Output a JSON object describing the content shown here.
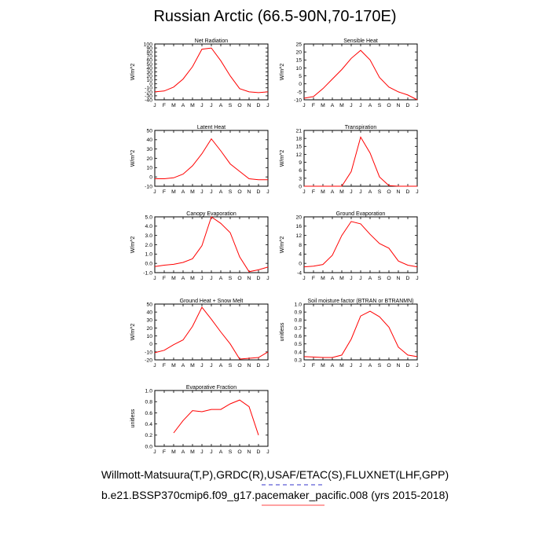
{
  "page": {
    "title": "Russian Arctic (66.5-90N,70-170E)",
    "footer_line1": "Willmott-Matsuura(T,P),GRDC(R),USAF/ETAC(S),FLUXNET(LHF,GPP)",
    "footer_line2": "b.e21.BSSP370cmip6.f09_g17.pacemaker_pacific.008 (yrs 2015-2018)"
  },
  "colors": {
    "series": "#ff0000",
    "axis": "#000000",
    "underline_blue": "#3333cc",
    "underline_red": "#ff4444"
  },
  "chart_data": [
    {
      "type": "line",
      "title": "Net Radiation",
      "ylabel": "W/m^2",
      "x": [
        "J",
        "F",
        "M",
        "A",
        "M",
        "J",
        "J",
        "A",
        "S",
        "O",
        "N",
        "D",
        "J"
      ],
      "ylim": [
        -40,
        100
      ],
      "yticks": [
        -40,
        -30,
        -20,
        -10,
        0,
        10,
        20,
        30,
        40,
        50,
        60,
        70,
        80,
        90,
        100
      ],
      "values": [
        -20,
        -18,
        -8,
        12,
        43,
        87,
        90,
        58,
        20,
        -12,
        -20,
        -22,
        -20
      ]
    },
    {
      "type": "line",
      "title": "Sensible Heat",
      "ylabel": "W/m^2",
      "x": [
        "J",
        "F",
        "M",
        "A",
        "M",
        "J",
        "J",
        "A",
        "S",
        "O",
        "N",
        "D",
        "J"
      ],
      "ylim": [
        -10,
        25
      ],
      "yticks": [
        -10,
        -5,
        0,
        5,
        10,
        15,
        20,
        25
      ],
      "values": [
        -9,
        -8,
        -3,
        3,
        9,
        16,
        21,
        15,
        4,
        -2,
        -5,
        -7,
        -10
      ]
    },
    {
      "type": "line",
      "title": "Latent Heat",
      "ylabel": "W/m^2",
      "x": [
        "J",
        "F",
        "M",
        "A",
        "M",
        "J",
        "J",
        "A",
        "S",
        "O",
        "N",
        "D",
        "J"
      ],
      "ylim": [
        -10,
        50
      ],
      "yticks": [
        -10,
        0,
        10,
        20,
        30,
        40,
        50
      ],
      "values": [
        -2,
        -2,
        -1,
        3,
        12,
        25,
        41,
        28,
        14,
        6,
        -2,
        -3,
        -3
      ]
    },
    {
      "type": "line",
      "title": "Transpiration",
      "ylabel": "W/m^2",
      "x": [
        "J",
        "F",
        "M",
        "A",
        "M",
        "J",
        "J",
        "A",
        "S",
        "O",
        "N",
        "D",
        "J"
      ],
      "ylim": [
        0,
        21
      ],
      "yticks": [
        0,
        3,
        6,
        9,
        12,
        15,
        18,
        21
      ],
      "values": [
        0,
        0,
        0,
        0,
        0,
        5.5,
        18.5,
        12.5,
        3.5,
        0.2,
        0,
        0,
        0
      ]
    },
    {
      "type": "line",
      "title": "Canopy Evaporation",
      "ylabel": "W/m^2",
      "x": [
        "J",
        "F",
        "M",
        "A",
        "M",
        "J",
        "J",
        "A",
        "S",
        "O",
        "N",
        "D",
        "J"
      ],
      "ylim": [
        -1.0,
        5.0
      ],
      "yticks": [
        "-1.0",
        "0.0",
        "1.0",
        "2.0",
        "3.0",
        "4.0",
        "5.0"
      ],
      "yticks_num": [
        -1,
        0,
        1,
        2,
        3,
        4,
        5
      ],
      "values": [
        -0.35,
        -0.2,
        -0.1,
        0.1,
        0.5,
        1.9,
        5.0,
        4.3,
        3.3,
        0.7,
        -0.9,
        -0.7,
        -0.4
      ]
    },
    {
      "type": "line",
      "title": "Ground Evaporation",
      "ylabel": "W/m^2",
      "x": [
        "J",
        "F",
        "M",
        "A",
        "M",
        "J",
        "J",
        "A",
        "S",
        "O",
        "N",
        "D",
        "J"
      ],
      "ylim": [
        -4,
        20
      ],
      "yticks": [
        -4,
        0,
        4,
        8,
        12,
        16,
        20
      ],
      "values": [
        -1.5,
        -1.2,
        -0.5,
        3.5,
        12,
        18,
        17,
        12.5,
        8.5,
        6.5,
        1,
        -0.8,
        -1.5
      ]
    },
    {
      "type": "line",
      "title": "Ground Heat + Snow Melt",
      "ylabel": "W/m^2",
      "x": [
        "J",
        "F",
        "M",
        "A",
        "M",
        "J",
        "J",
        "A",
        "S",
        "O",
        "N",
        "D",
        "J"
      ],
      "ylim": [
        -20,
        50
      ],
      "yticks": [
        -20,
        -10,
        0,
        10,
        20,
        30,
        40,
        50
      ],
      "values": [
        -11,
        -8,
        -1,
        5,
        22,
        46,
        31,
        15,
        0,
        -19,
        -18,
        -17,
        -10
      ]
    },
    {
      "type": "line",
      "title": "Soil moisture factor (BTRAN or BTRANMN)",
      "ylabel": "unitless",
      "x": [
        "J",
        "F",
        "M",
        "A",
        "M",
        "J",
        "J",
        "A",
        "S",
        "O",
        "N",
        "D",
        "J"
      ],
      "ylim": [
        0.3,
        1.0
      ],
      "yticks": [
        "0.3",
        "0.4",
        "0.5",
        "0.6",
        "0.7",
        "0.8",
        "0.9",
        "1.0"
      ],
      "yticks_num": [
        0.3,
        0.4,
        0.5,
        0.6,
        0.7,
        0.8,
        0.9,
        1.0
      ],
      "values": [
        0.34,
        0.335,
        0.33,
        0.33,
        0.36,
        0.56,
        0.85,
        0.91,
        0.84,
        0.71,
        0.46,
        0.36,
        0.34
      ]
    },
    {
      "type": "line",
      "title": "Evaporative Fraction",
      "ylabel": "unitless",
      "x": [
        "J",
        "F",
        "M",
        "A",
        "M",
        "J",
        "J",
        "A",
        "S",
        "O",
        "N",
        "D",
        "J"
      ],
      "ylim": [
        0.0,
        1.0
      ],
      "yticks": [
        "0.0",
        "0.2",
        "0.4",
        "0.6",
        "0.8",
        "1.0"
      ],
      "yticks_num": [
        0,
        0.2,
        0.4,
        0.6,
        0.8,
        1.0
      ],
      "values": [
        null,
        null,
        0.24,
        0.46,
        0.64,
        0.62,
        0.66,
        0.66,
        0.76,
        0.83,
        0.71,
        0.2,
        null
      ]
    }
  ]
}
